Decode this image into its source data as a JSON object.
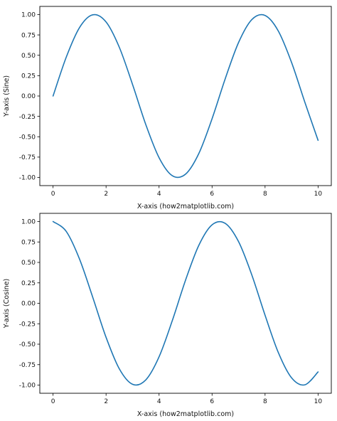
{
  "chart_data": [
    {
      "type": "line",
      "xlabel": "X-axis (how2matplotlib.com)",
      "ylabel": "Y-axis (Sine)",
      "xlim": [
        -0.5,
        10.5
      ],
      "ylim": [
        -1.1,
        1.1
      ],
      "xticks": [
        0,
        2,
        4,
        6,
        8,
        10
      ],
      "xtick_labels": [
        "0",
        "2",
        "4",
        "6",
        "8",
        "10"
      ],
      "yticks": [
        1.0,
        0.75,
        0.5,
        0.25,
        0.0,
        -0.25,
        -0.5,
        -0.75,
        -1.0
      ],
      "ytick_labels": [
        "1.00",
        "0.75",
        "0.50",
        "0.25",
        "0.00",
        "-0.25",
        "-0.50",
        "-0.75",
        "-1.00"
      ],
      "series": [
        {
          "color": "#1f77b4",
          "x": [
            0,
            0.5,
            1,
            1.5,
            2,
            2.5,
            3,
            3.5,
            4,
            4.5,
            5,
            5.5,
            6,
            6.5,
            7,
            7.5,
            8,
            8.5,
            9,
            9.5,
            10
          ],
          "y": [
            0.0,
            0.479,
            0.841,
            0.997,
            0.909,
            0.598,
            0.141,
            -0.351,
            -0.757,
            -0.978,
            -0.959,
            -0.706,
            -0.279,
            0.215,
            0.657,
            0.938,
            0.989,
            0.798,
            0.412,
            -0.075,
            -0.544
          ]
        }
      ]
    },
    {
      "type": "line",
      "xlabel": "X-axis (how2matplotlib.com)",
      "ylabel": "Y-axis (Cosine)",
      "xlim": [
        -0.5,
        10.5
      ],
      "ylim": [
        -1.1,
        1.1
      ],
      "xticks": [
        0,
        2,
        4,
        6,
        8,
        10
      ],
      "xtick_labels": [
        "0",
        "2",
        "4",
        "6",
        "8",
        "10"
      ],
      "yticks": [
        1.0,
        0.75,
        0.5,
        0.25,
        0.0,
        -0.25,
        -0.5,
        -0.75,
        -1.0
      ],
      "ytick_labels": [
        "1.00",
        "0.75",
        "0.50",
        "0.25",
        "0.00",
        "-0.25",
        "-0.50",
        "-0.75",
        "-1.00"
      ],
      "series": [
        {
          "color": "#1f77b4",
          "x": [
            0,
            0.5,
            1,
            1.5,
            2,
            2.5,
            3,
            3.5,
            4,
            4.5,
            5,
            5.5,
            6,
            6.5,
            7,
            7.5,
            8,
            8.5,
            9,
            9.5,
            10
          ],
          "y": [
            1.0,
            0.878,
            0.54,
            0.071,
            -0.416,
            -0.801,
            -0.99,
            -0.936,
            -0.654,
            -0.211,
            0.284,
            0.709,
            0.96,
            0.977,
            0.754,
            0.347,
            -0.146,
            -0.602,
            -0.911,
            -0.997,
            -0.839
          ]
        }
      ]
    }
  ]
}
